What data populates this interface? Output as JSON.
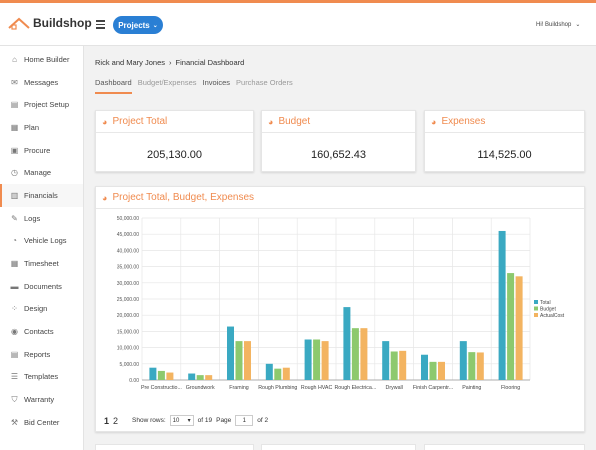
{
  "header": {
    "logo_text": "Buildshop",
    "projects_button": "Projects",
    "user_label": "Hi! Buildshop",
    "brand_color": "#f08b4f",
    "button_color": "#2a7fd4"
  },
  "sidebar": {
    "items": [
      {
        "label": "Home Builder",
        "icon": "home-icon",
        "glyph": "⌂"
      },
      {
        "label": "Messages",
        "icon": "chat-icon",
        "glyph": "✉"
      },
      {
        "label": "Project Setup",
        "icon": "book-icon",
        "glyph": "▤"
      },
      {
        "label": "Plan",
        "icon": "document-icon",
        "glyph": "▦"
      },
      {
        "label": "Procure",
        "icon": "cart-icon",
        "glyph": "▣"
      },
      {
        "label": "Manage",
        "icon": "clock-icon",
        "glyph": "◷"
      },
      {
        "label": "Financials",
        "icon": "chart-icon",
        "glyph": "▥"
      },
      {
        "label": "Logs",
        "icon": "pencil-icon",
        "glyph": "✎"
      },
      {
        "label": "Vehicle Logs",
        "icon": "gauge-icon",
        "glyph": "◔"
      },
      {
        "label": "Timesheet",
        "icon": "calendar-icon",
        "glyph": "▦"
      },
      {
        "label": "Documents",
        "icon": "folder-icon",
        "glyph": "▬"
      },
      {
        "label": "Design",
        "icon": "spinner-icon",
        "glyph": "⁘"
      },
      {
        "label": "Contacts",
        "icon": "contact-icon",
        "glyph": "◉"
      },
      {
        "label": "Reports",
        "icon": "report-icon",
        "glyph": "▤"
      },
      {
        "label": "Templates",
        "icon": "list-icon",
        "glyph": "☰"
      },
      {
        "label": "Warranty",
        "icon": "shield-icon",
        "glyph": "⛉"
      },
      {
        "label": "Bid Center",
        "icon": "gavel-icon",
        "glyph": "⚒"
      }
    ],
    "active_index": 6
  },
  "breadcrumb": {
    "project": "Rick and Mary Jones",
    "separator": "›",
    "page": "Financial Dashboard"
  },
  "tabs": [
    "Dashboard",
    "Budget/Expenses",
    "Invoices",
    "Purchase Orders"
  ],
  "summary": [
    {
      "title": "Project Total",
      "value": "205,130.00"
    },
    {
      "title": "Budget",
      "value": "160,652.43"
    },
    {
      "title": "Expenses",
      "value": "114,525.00"
    }
  ],
  "chart_card": {
    "title": "Project Total, Budget, Expenses"
  },
  "chart_data": {
    "type": "bar",
    "categories": [
      "Pre Constructio...",
      "Groundwork",
      "Framing",
      "Rough Plumbing",
      "Rough HVAC",
      "Rough Electrica...",
      "Drywall",
      "Finish Carpentr...",
      "Painting",
      "Flooring"
    ],
    "series": [
      {
        "name": "Total",
        "color": "#3aa9c2",
        "values": [
          3800,
          2000,
          16500,
          5000,
          12500,
          22500,
          12000,
          7800,
          12000,
          46000
        ]
      },
      {
        "name": "Budget",
        "color": "#8dc96e",
        "values": [
          2800,
          1500,
          12000,
          3500,
          12500,
          16000,
          8800,
          5600,
          8600,
          33000
        ]
      },
      {
        "name": "ActualCost",
        "color": "#f3b461",
        "values": [
          2300,
          1500,
          12000,
          3800,
          12000,
          16000,
          9000,
          5600,
          8500,
          32000
        ]
      }
    ],
    "ylim": [
      0,
      50000
    ],
    "yticks": [
      "0.00",
      "5,000.00",
      "10,000.00",
      "15,000.00",
      "20,000.00",
      "25,000.00",
      "30,000.00",
      "35,000.00",
      "40,000.00",
      "45,000.00",
      "50,000.00"
    ],
    "grid": true,
    "legend": "right"
  },
  "pagination": {
    "pages": [
      "1",
      "2"
    ],
    "show_rows_label": "Show rows:",
    "rows_value": "10",
    "of_rows": "of 19",
    "page_label": "Page",
    "page_value": "1",
    "of_pages": "of 2"
  }
}
